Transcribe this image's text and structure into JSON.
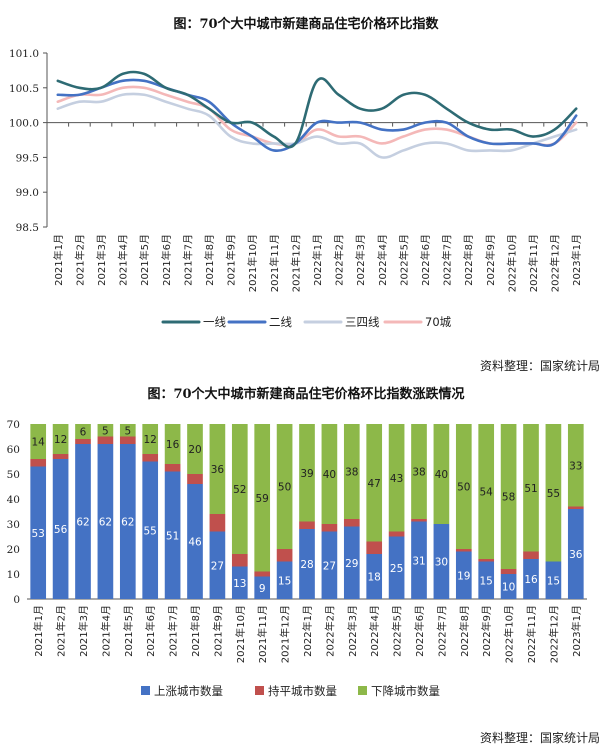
{
  "chart_data": [
    {
      "type": "line",
      "title": "图：70个大中城市新建商品住宅价格环比指数",
      "xlabel": "",
      "ylabel": "",
      "ylim": [
        98.5,
        101.0
      ],
      "yticks": [
        "98.5",
        "99.0",
        "99.5",
        "100.0",
        "100.5",
        "101.0"
      ],
      "categories": [
        "2021年1月",
        "2021年2月",
        "2021年3月",
        "2021年4月",
        "2021年5月",
        "2021年6月",
        "2021年7月",
        "2021年8月",
        "2021年9月",
        "2021年10月",
        "2021年11月",
        "2021年12月",
        "2022年1月",
        "2022年2月",
        "2022年3月",
        "2022年4月",
        "2022年5月",
        "2022年6月",
        "2022年7月",
        "2022年8月",
        "2022年9月",
        "2022年10月",
        "2022年11月",
        "2022年12月",
        "2023年1月"
      ],
      "series": [
        {
          "name": "一线",
          "color": "#2e6b74",
          "values": [
            100.6,
            100.5,
            100.5,
            100.7,
            100.7,
            100.5,
            100.4,
            100.2,
            100.0,
            100.0,
            99.8,
            99.7,
            100.6,
            100.4,
            100.2,
            100.2,
            100.4,
            100.4,
            100.2,
            100.0,
            99.9,
            99.9,
            99.8,
            99.9,
            100.2
          ]
        },
        {
          "name": "二线",
          "color": "#4472c4",
          "values": [
            100.4,
            100.4,
            100.5,
            100.6,
            100.6,
            100.5,
            100.4,
            100.3,
            100.0,
            99.8,
            99.6,
            99.7,
            100.0,
            100.0,
            100.0,
            99.9,
            99.9,
            100.0,
            100.0,
            99.8,
            99.7,
            99.7,
            99.7,
            99.7,
            100.1
          ]
        },
        {
          "name": "三四线",
          "color": "#c5cfe0",
          "values": [
            100.2,
            100.3,
            100.3,
            100.4,
            100.4,
            100.3,
            100.2,
            100.1,
            99.8,
            99.7,
            99.7,
            99.7,
            99.8,
            99.7,
            99.7,
            99.5,
            99.6,
            99.7,
            99.7,
            99.6,
            99.6,
            99.6,
            99.7,
            99.8,
            99.9
          ]
        },
        {
          "name": "70城",
          "color": "#f4b8b8",
          "values": [
            100.3,
            100.4,
            100.4,
            100.5,
            100.5,
            100.4,
            100.3,
            100.2,
            99.9,
            99.8,
            99.7,
            99.7,
            99.9,
            99.8,
            99.8,
            99.7,
            99.8,
            99.9,
            99.9,
            99.8,
            99.7,
            99.7,
            99.7,
            99.7,
            100.0
          ]
        }
      ],
      "source": "资料整理：国家统计局"
    },
    {
      "type": "bar",
      "stacked": true,
      "title": "图：70个大中城市新建商品住宅价格环比指数涨跌情况",
      "xlabel": "",
      "ylabel": "",
      "ylim": [
        0,
        70
      ],
      "yticks": [
        "0",
        "10",
        "20",
        "30",
        "40",
        "50",
        "60",
        "70"
      ],
      "categories": [
        "2021年1月",
        "2021年2月",
        "2021年3月",
        "2021年4月",
        "2021年5月",
        "2021年6月",
        "2021年7月",
        "2021年8月",
        "2021年9月",
        "2021年10月",
        "2021年11月",
        "2021年12月",
        "2022年1月",
        "2022年2月",
        "2022年3月",
        "2022年4月",
        "2022年5月",
        "2022年6月",
        "2022年7月",
        "2022年8月",
        "2022年9月",
        "2022年10月",
        "2022年11月",
        "2022年12月",
        "2023年1月"
      ],
      "series": [
        {
          "name": "上涨城市数量",
          "color": "#4472c4",
          "values": [
            53,
            56,
            62,
            62,
            62,
            55,
            51,
            46,
            27,
            13,
            9,
            15,
            28,
            27,
            29,
            18,
            25,
            31,
            30,
            19,
            15,
            10,
            16,
            15,
            36
          ]
        },
        {
          "name": "持平城市数量",
          "color": "#c0504d",
          "values": [
            3,
            2,
            2,
            3,
            3,
            3,
            3,
            4,
            7,
            5,
            2,
            5,
            3,
            3,
            3,
            5,
            2,
            1,
            0,
            1,
            1,
            2,
            3,
            0,
            1
          ]
        },
        {
          "name": "下降城市数量",
          "color": "#8db849",
          "values": [
            14,
            12,
            6,
            5,
            5,
            12,
            16,
            20,
            36,
            52,
            59,
            50,
            39,
            40,
            38,
            47,
            43,
            38,
            40,
            50,
            54,
            58,
            51,
            55,
            33
          ]
        }
      ],
      "source": "资料整理：国家统计局"
    }
  ]
}
